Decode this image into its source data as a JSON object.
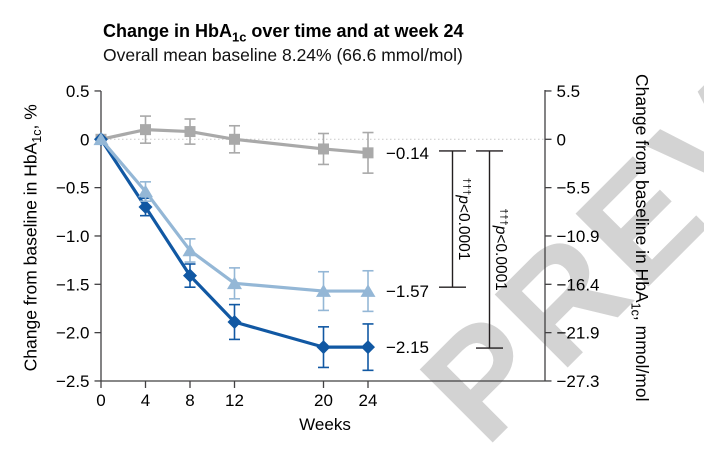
{
  "watermark": "PREVIEW",
  "texts": {
    "title_pre": "Change in HbA",
    "title_sub": "1c",
    "title_post": " over time and at week 24",
    "subtitle": "Overall mean baseline 8.24% (66.6 mmol/mol)"
  },
  "chart_data": {
    "type": "line",
    "title": "Change in HbA1c over time and at week 24",
    "subtitle": "Overall mean baseline 8.24% (66.6 mmol/mol)",
    "x": [
      0,
      4,
      8,
      12,
      20,
      24
    ],
    "x_axis": {
      "label": "Weeks",
      "tick_labels": [
        "0",
        "4",
        "8",
        "12",
        "20",
        "24"
      ],
      "range": [
        0,
        40
      ]
    },
    "y_left_axis": {
      "label_pre": "Change from baseline in HbA",
      "label_sub": "1c",
      "label_post": ", %",
      "tick_values": [
        0.5,
        0,
        -0.5,
        -1.0,
        -1.5,
        -2.0,
        -2.5
      ],
      "tick_labels": [
        "0.5",
        "0",
        "−0.5",
        "−1.0",
        "−1.5",
        "−2.0",
        "−2.5"
      ],
      "range": [
        0.5,
        -2.5
      ]
    },
    "y_right_axis": {
      "label_pre": "Change from baseline in HbA",
      "label_sub": "1c",
      "label_post": ", mmol/mol",
      "tick_values_pct": [
        0.5,
        0,
        -0.5,
        -1.0,
        -1.5,
        -2.0,
        -2.5
      ],
      "tick_labels": [
        "5.5",
        "0",
        "−5.5",
        "−10.9",
        "−16.4",
        "−21.9",
        "−27.3"
      ]
    },
    "zero_reference_line": true,
    "series": [
      {
        "id": "gray-squares",
        "marker": "square",
        "color": "#a9a9a9",
        "values": [
          0,
          0.1,
          0.08,
          0.0,
          -0.1,
          -0.14
        ],
        "errors": [
          0,
          0.14,
          0.13,
          0.14,
          0.16,
          0.21
        ],
        "end_label": "−0.14"
      },
      {
        "id": "dark-blue-diamonds",
        "marker": "diamond",
        "color": "#1158a3",
        "values": [
          0,
          -0.7,
          -1.41,
          -1.89,
          -2.15,
          -2.15
        ],
        "errors": [
          0,
          0.09,
          0.12,
          0.18,
          0.21,
          0.24
        ],
        "end_label": "−2.15"
      },
      {
        "id": "light-blue-triangles",
        "marker": "triangle",
        "color": "#94b7d6",
        "values": [
          0,
          -0.54,
          -1.15,
          -1.49,
          -1.57,
          -1.57
        ],
        "errors": [
          0,
          0.1,
          0.12,
          0.16,
          0.2,
          0.21
        ],
        "end_label": "−1.57"
      }
    ],
    "significance_brackets": [
      {
        "daggers": "†††",
        "p": "p",
        "comparison": "<0.0001",
        "top": -0.12,
        "bottom": -1.53
      },
      {
        "daggers": "†††",
        "p": "p",
        "comparison": "<0.0001",
        "top": -0.12,
        "bottom": -2.16
      }
    ]
  }
}
